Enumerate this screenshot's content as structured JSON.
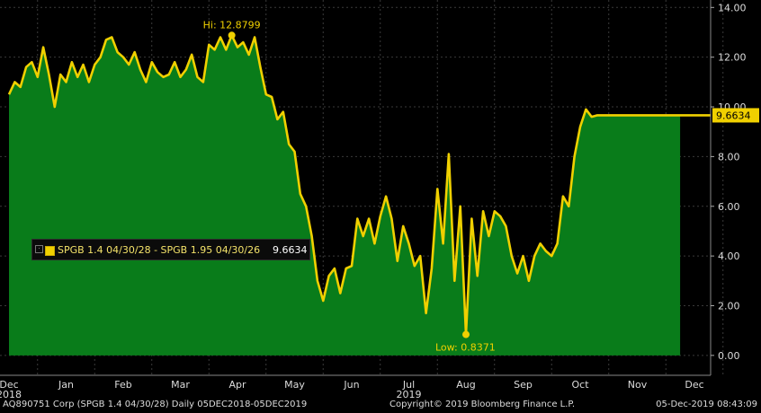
{
  "chart_data": {
    "type": "area",
    "y_ticks": [
      "14.00",
      "12.00",
      "10.00",
      "8.00",
      "6.00",
      "4.00",
      "2.00",
      "0.00"
    ],
    "ylim": [
      -0.8,
      14.3
    ],
    "x_labels": [
      {
        "label": "Dec",
        "sub": "2018",
        "pos": 0.0
      },
      {
        "label": "Jan",
        "sub": "",
        "pos": 1.0
      },
      {
        "label": "Feb",
        "sub": "",
        "pos": 2.0
      },
      {
        "label": "Mar",
        "sub": "",
        "pos": 3.0
      },
      {
        "label": "Apr",
        "sub": "",
        "pos": 4.0
      },
      {
        "label": "May",
        "sub": "",
        "pos": 5.0
      },
      {
        "label": "Jun",
        "sub": "",
        "pos": 6.0
      },
      {
        "label": "Jul",
        "sub": "2019",
        "pos": 7.0
      },
      {
        "label": "Aug",
        "sub": "",
        "pos": 8.0
      },
      {
        "label": "Sep",
        "sub": "",
        "pos": 9.0
      },
      {
        "label": "Oct",
        "sub": "",
        "pos": 10.0
      },
      {
        "label": "Nov",
        "sub": "",
        "pos": 11.0
      },
      {
        "label": "Dec",
        "sub": "",
        "pos": 12.0
      }
    ],
    "series": [
      {
        "name": "SPGB 1.4 04/30/28 - SPGB 1.95 04/30/26",
        "x": [
          0,
          0.1,
          0.2,
          0.3,
          0.4,
          0.5,
          0.6,
          0.7,
          0.8,
          0.9,
          1.0,
          1.1,
          1.2,
          1.3,
          1.4,
          1.5,
          1.6,
          1.7,
          1.8,
          1.9,
          2.0,
          2.1,
          2.2,
          2.3,
          2.4,
          2.5,
          2.6,
          2.7,
          2.8,
          2.9,
          3.0,
          3.1,
          3.2,
          3.3,
          3.4,
          3.5,
          3.6,
          3.7,
          3.8,
          3.9,
          4.0,
          4.1,
          4.2,
          4.3,
          4.4,
          4.5,
          4.6,
          4.7,
          4.8,
          4.9,
          5.0,
          5.1,
          5.2,
          5.3,
          5.4,
          5.5,
          5.6,
          5.7,
          5.8,
          5.9,
          6.0,
          6.1,
          6.2,
          6.3,
          6.4,
          6.5,
          6.6,
          6.7,
          6.8,
          6.9,
          7.0,
          7.1,
          7.2,
          7.3,
          7.4,
          7.5,
          7.6,
          7.7,
          7.8,
          7.9,
          8.0,
          8.1,
          8.2,
          8.3,
          8.4,
          8.5,
          8.6,
          8.7,
          8.8,
          8.9,
          9.0,
          9.1,
          9.2,
          9.3,
          9.4,
          9.5,
          9.6,
          9.7,
          9.8,
          9.9,
          10.0,
          10.1,
          10.2,
          10.3,
          10.4,
          10.5,
          10.6,
          10.7,
          10.8,
          10.9,
          11.0,
          11.1,
          11.2,
          11.3,
          11.4,
          11.5,
          11.6,
          11.7,
          11.75
        ],
        "values": [
          10.5,
          11.0,
          10.8,
          11.6,
          11.8,
          11.2,
          12.4,
          11.3,
          10.0,
          11.3,
          11.0,
          11.8,
          11.2,
          11.7,
          11.0,
          11.7,
          12.0,
          12.7,
          12.8,
          12.2,
          12.0,
          11.7,
          12.2,
          11.5,
          11.0,
          11.8,
          11.4,
          11.2,
          11.3,
          11.8,
          11.2,
          11.5,
          12.1,
          11.2,
          11.0,
          12.5,
          12.3,
          12.8,
          12.3,
          12.88,
          12.4,
          12.6,
          12.1,
          12.8,
          11.6,
          10.5,
          10.4,
          9.5,
          9.8,
          8.5,
          8.2,
          6.5,
          6.0,
          4.8,
          3.0,
          2.2,
          3.2,
          3.5,
          2.5,
          3.5,
          3.6,
          5.5,
          4.8,
          5.5,
          4.5,
          5.6,
          6.4,
          5.5,
          3.8,
          5.2,
          4.5,
          3.6,
          4.0,
          1.7,
          3.5,
          6.7,
          4.5,
          8.1,
          3.0,
          6.0,
          0.84,
          5.5,
          3.2,
          5.8,
          4.8,
          5.8,
          5.6,
          5.2,
          4.0,
          3.3,
          4.0,
          3.0,
          4.0,
          4.5,
          4.2,
          4.0,
          4.5,
          6.4,
          6.0,
          8.0,
          9.2,
          9.9,
          9.6,
          9.66,
          9.66,
          9.66,
          9.66,
          9.66,
          9.66,
          9.66,
          9.66,
          9.66,
          9.66,
          9.66,
          9.66,
          9.66,
          9.66,
          9.66,
          9.66
        ]
      }
    ],
    "annotations": {
      "high": "Hi: 12.8799",
      "low": "Low: 0.8371",
      "last_value": "9.6634"
    },
    "legend": {
      "label": "SPGB 1.4 04/30/28 - SPGB 1.95 04/30/26",
      "value": "9.6634"
    },
    "colors": {
      "background": "#000000",
      "area": "#097c1a",
      "line": "#f0d000"
    },
    "grid": true
  },
  "footer": {
    "left": "AQ890751 Corp (SPGB 1.4 04/30/28) Daily 05DEC2018-05DEC2019",
    "center": "Copyright© 2019 Bloomberg Finance L.P.",
    "right": "05-Dec-2019 08:43:09"
  }
}
